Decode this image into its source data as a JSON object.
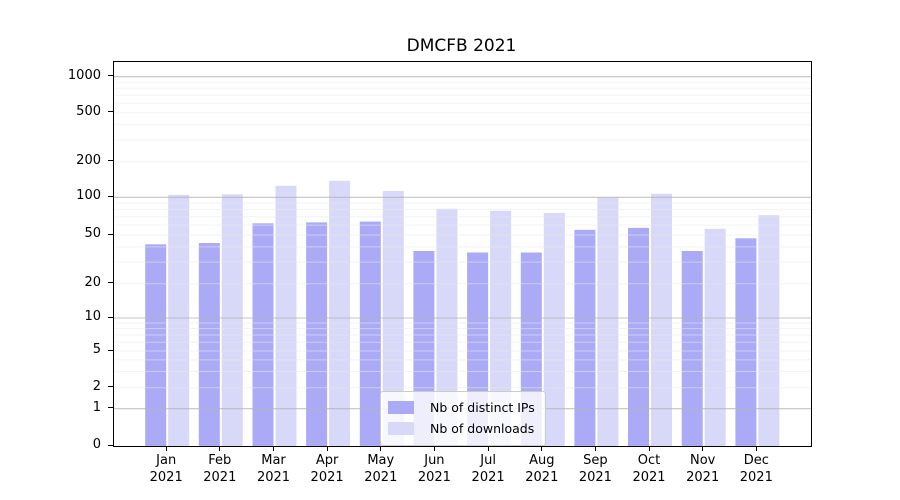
{
  "chart_data": {
    "type": "bar",
    "title": "DMCFB 2021",
    "categories": [
      "Jan 2021",
      "Feb 2021",
      "Mar 2021",
      "Apr 2021",
      "May 2021",
      "Jun 2021",
      "Jul 2021",
      "Aug 2021",
      "Sep 2021",
      "Oct 2021",
      "Nov 2021",
      "Dec 2021"
    ],
    "series": [
      {
        "name": "Nb of distinct IPs",
        "color": "#aaaaf6",
        "values": [
          42,
          43,
          62,
          63,
          64,
          37,
          36,
          36,
          55,
          57,
          37,
          47
        ]
      },
      {
        "name": "Nb of downloads",
        "color": "#d8d8f9",
        "values": [
          105,
          106,
          125,
          138,
          113,
          81,
          78,
          75,
          100,
          107,
          56,
          72
        ]
      }
    ],
    "xlabel": "",
    "ylabel": "",
    "yscale": "symlog",
    "yticks": [
      "0",
      "1",
      "2",
      "5",
      "10",
      "20",
      "50",
      "100",
      "200",
      "500",
      "1000"
    ],
    "ylim": [
      0,
      1000
    ],
    "grid": "on",
    "legend_position": "lower center"
  },
  "colors": {
    "grid_major": "#b5b5b5",
    "grid_minor": "#e9e9e9",
    "spine": "#000000",
    "background": "#ffffff"
  }
}
